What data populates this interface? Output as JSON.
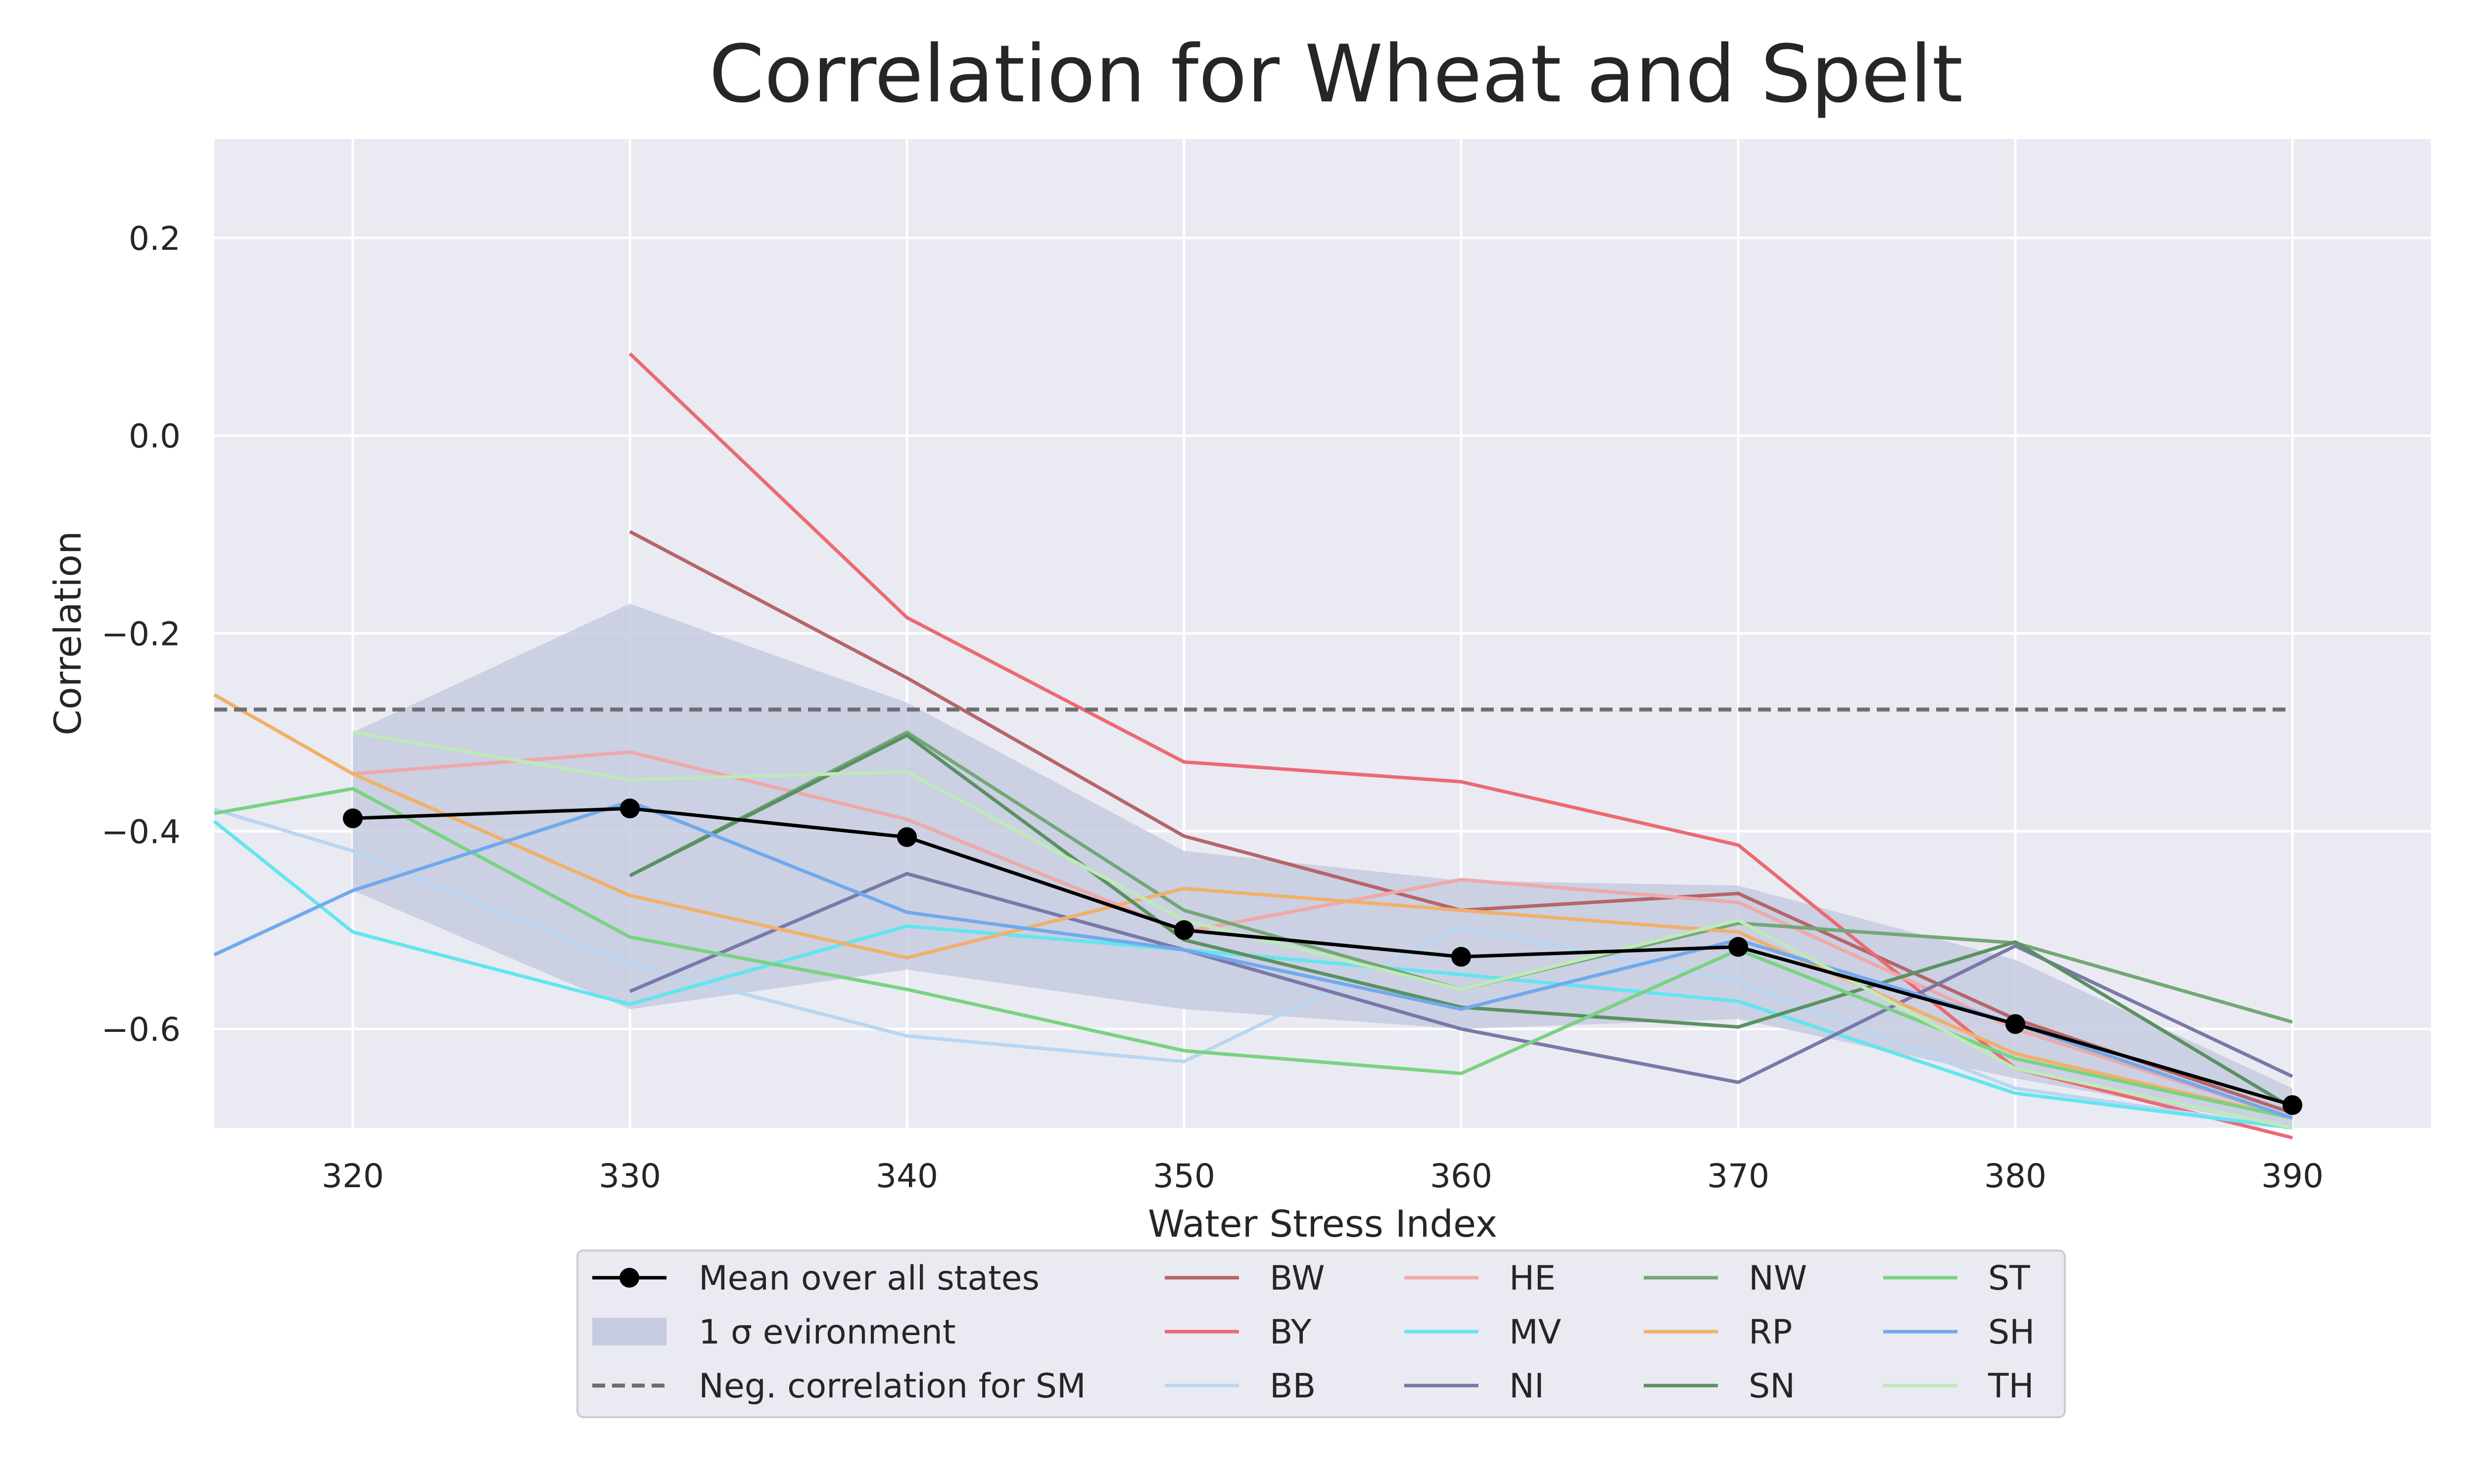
{
  "chart_data": {
    "type": "line",
    "title": "Correlation for Wheat and Spelt",
    "xlabel": "Water Stress Index",
    "ylabel": "Correlation",
    "xlim": [
      315,
      395
    ],
    "ylim": [
      -0.7,
      0.3
    ],
    "xticks": [
      320,
      330,
      340,
      350,
      360,
      370,
      380,
      390
    ],
    "yticks": [
      -0.6,
      -0.4,
      -0.2,
      0.0,
      0.2
    ],
    "ytick_labels": [
      "−0.6",
      "−0.4",
      "−0.2",
      "0.0",
      "0.2"
    ],
    "grid": true,
    "background": "#eaeaf2",
    "legend_position": "below",
    "mean": {
      "name": "Mean over all states",
      "color": "#000000",
      "x": [
        320,
        330,
        340,
        350,
        360,
        370,
        380,
        390
      ],
      "y": [
        -0.387,
        -0.377,
        -0.406,
        -0.5,
        -0.527,
        -0.517,
        -0.595,
        -0.677
      ]
    },
    "band": {
      "name": "1 σ evironment",
      "color": "#c5cbe1",
      "x": [
        320,
        330,
        340,
        350,
        360,
        370,
        380,
        390
      ],
      "upper": [
        -0.3,
        -0.17,
        -0.27,
        -0.42,
        -0.45,
        -0.455,
        -0.53,
        -0.66
      ],
      "lower": [
        -0.46,
        -0.58,
        -0.54,
        -0.58,
        -0.6,
        -0.59,
        -0.65,
        -0.7
      ]
    },
    "reference_line": {
      "name": "Neg. correlation for SM",
      "color": "#6e6e6e",
      "y": -0.277,
      "x_range": [
        315,
        390
      ]
    },
    "series": [
      {
        "name": "BW",
        "color": "#b5656a",
        "x": [
          330,
          340,
          350,
          360,
          370,
          380,
          390
        ],
        "y": [
          -0.097,
          -0.245,
          -0.405,
          -0.48,
          -0.463,
          -0.59,
          -0.685
        ]
      },
      {
        "name": "BY",
        "color": "#eb6a72",
        "x": [
          330,
          340,
          350,
          360,
          370,
          380,
          390
        ],
        "y": [
          0.083,
          -0.184,
          -0.33,
          -0.35,
          -0.414,
          -0.64,
          -0.71
        ]
      },
      {
        "name": "BB",
        "color": "#b9d6f2",
        "x": [
          315,
          320,
          330,
          340,
          350,
          360,
          370,
          380,
          390
        ],
        "y": [
          -0.378,
          -0.42,
          -0.535,
          -0.607,
          -0.633,
          -0.497,
          -0.552,
          -0.66,
          -0.7
        ]
      },
      {
        "name": "HE",
        "color": "#eea9a9",
        "x": [
          320,
          330,
          340,
          350,
          360,
          370,
          380,
          390
        ],
        "y": [
          -0.342,
          -0.32,
          -0.388,
          -0.502,
          -0.449,
          -0.472,
          -0.6,
          -0.69
        ]
      },
      {
        "name": "MV",
        "color": "#62e5ee",
        "x": [
          315,
          320,
          330,
          340,
          350,
          360,
          370,
          380,
          390
        ],
        "y": [
          -0.39,
          -0.502,
          -0.575,
          -0.496,
          -0.52,
          -0.545,
          -0.572,
          -0.665,
          -0.7
        ]
      },
      {
        "name": "NI",
        "color": "#7978a8",
        "x": [
          330,
          340,
          350,
          360,
          370,
          380,
          390
        ],
        "y": [
          -0.562,
          -0.443,
          -0.52,
          -0.6,
          -0.654,
          -0.516,
          -0.648
        ]
      },
      {
        "name": "NW",
        "color": "#73a777",
        "x": [
          330,
          340,
          350,
          360,
          370,
          380,
          390
        ],
        "y": [
          -0.445,
          -0.3,
          -0.48,
          -0.56,
          -0.493,
          -0.513,
          -0.593
        ]
      },
      {
        "name": "RP",
        "color": "#f0b06a",
        "x": [
          315,
          320,
          330,
          340,
          350,
          360,
          370,
          380,
          390
        ],
        "y": [
          -0.262,
          -0.342,
          -0.465,
          -0.528,
          -0.458,
          -0.48,
          -0.502,
          -0.625,
          -0.69
        ]
      },
      {
        "name": "SN",
        "color": "#5a9162",
        "x": [
          330,
          340,
          350,
          360,
          370,
          380,
          390
        ],
        "y": [
          -0.445,
          -0.303,
          -0.51,
          -0.578,
          -0.598,
          -0.512,
          -0.68
        ]
      },
      {
        "name": "ST",
        "color": "#7ad282",
        "x": [
          315,
          320,
          330,
          340,
          350,
          360,
          370,
          380,
          390
        ],
        "y": [
          -0.382,
          -0.357,
          -0.507,
          -0.56,
          -0.622,
          -0.645,
          -0.52,
          -0.63,
          -0.69
        ]
      },
      {
        "name": "SH",
        "color": "#71a9ec",
        "x": [
          315,
          320,
          330,
          340,
          350,
          360,
          370,
          380,
          390
        ],
        "y": [
          -0.525,
          -0.46,
          -0.37,
          -0.482,
          -0.52,
          -0.58,
          -0.51,
          -0.595,
          -0.69
        ]
      },
      {
        "name": "TH",
        "color": "#bfe9b8",
        "x": [
          320,
          330,
          340,
          350,
          360,
          370,
          380,
          390
        ],
        "y": [
          -0.3,
          -0.348,
          -0.34,
          -0.49,
          -0.56,
          -0.49,
          -0.64,
          -0.7
        ]
      }
    ]
  }
}
